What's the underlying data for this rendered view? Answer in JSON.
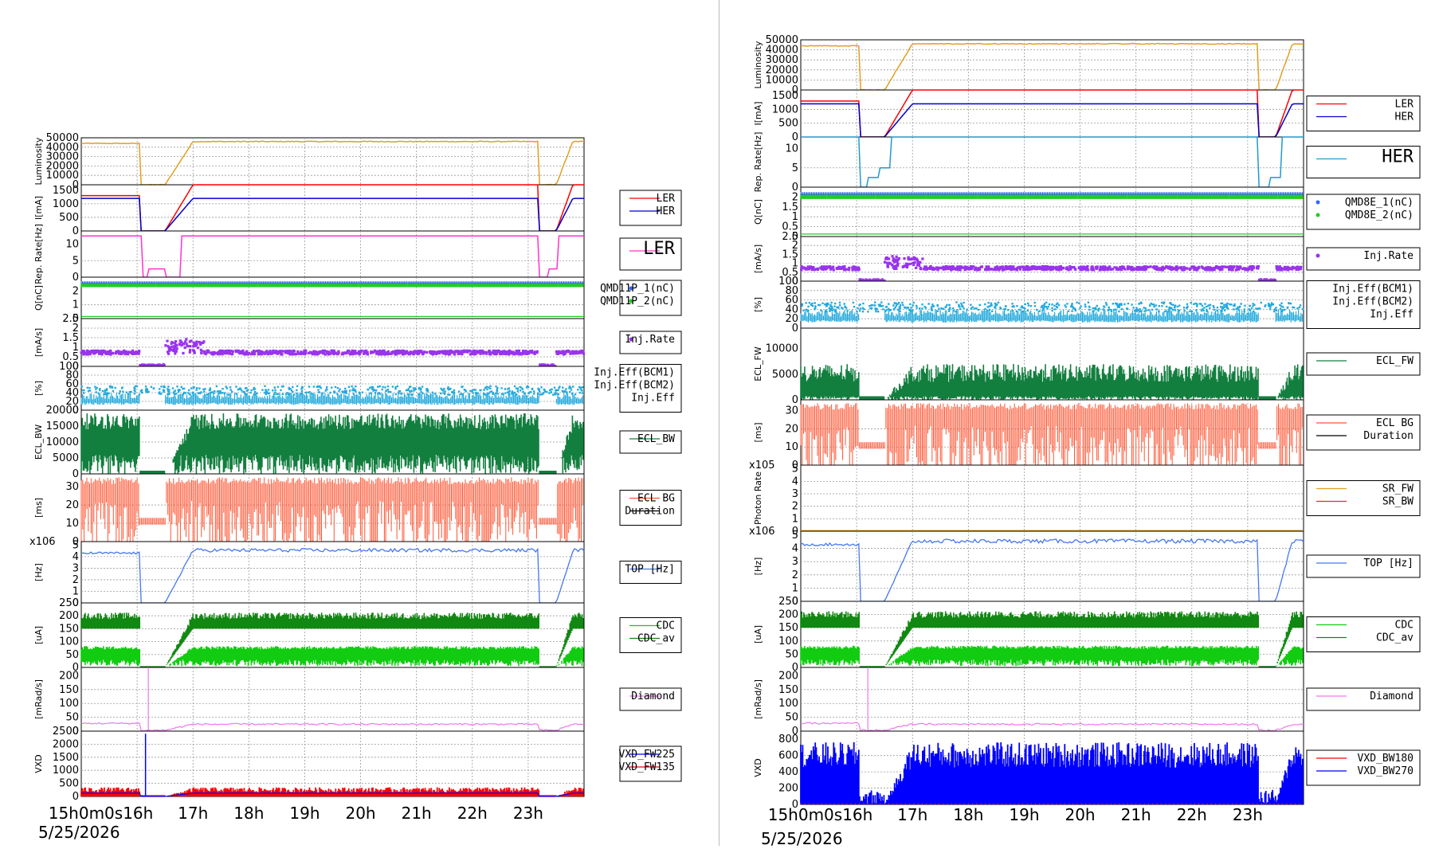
{
  "colors": {
    "luminosity": "#e0a020",
    "ler": "#ff0000",
    "her": "#0000cc",
    "rep_rate_ler": "#ff33cc",
    "rep_rate_her": "#2299cc",
    "q1": "#3366ff",
    "q2": "#22cc22",
    "inj_rate": "#9933ee",
    "inj_eff": "#22aadd",
    "ecl": "#127f3f",
    "ecl_bg": "#ff5533",
    "sr_fw": "#e6a020",
    "sr_bw": "#ff2222",
    "top": "#4477ee",
    "cdc": "#11cc11",
    "cdc_av": "#118811",
    "diamond": "#ee77ee",
    "vxd_red": "#ff0000",
    "vxd_blue": "#0000ff"
  },
  "chart_data": [
    {
      "id": "left",
      "type": "line",
      "date": "5/25/2026",
      "x_ticks": [
        "15h0m0s16h",
        "17h",
        "18h",
        "19h",
        "20h",
        "21h",
        "22h",
        "23h"
      ],
      "panels": [
        {
          "ylabel": "Luminosity",
          "ticks": [
            "50000",
            "40000",
            "30000",
            "20000",
            "10000",
            "0"
          ],
          "ymax": 50000,
          "kind": "lum",
          "legend": []
        },
        {
          "ylabel": "I[mA]",
          "ticks": [
            "1500",
            "1000",
            "500",
            "0"
          ],
          "ymax": 1700,
          "kind": "current",
          "legend": [
            "LER",
            "HER"
          ]
        },
        {
          "ylabel": "Rep. Rate[Hz]",
          "ticks": [
            "10",
            "5",
            "0"
          ],
          "ymax": 14,
          "kind": "rep_ler",
          "legend": [
            "LER"
          ]
        },
        {
          "ylabel": "Q[nC]",
          "ticks": [
            "2",
            "1",
            "0"
          ],
          "ymax": 3,
          "kind": "charge",
          "legend": [
            "QMD11P_1(nC)",
            "QMD11P_2(nC)"
          ]
        },
        {
          "ylabel": "[mA/s]",
          "ticks": [
            "2.5",
            "2",
            "1.5",
            "1",
            "0.5",
            "0"
          ],
          "ymax": 2.5,
          "kind": "injrate",
          "legend": [
            "Inj.Rate"
          ]
        },
        {
          "ylabel": "[%]",
          "ticks": [
            "100",
            "80",
            "60",
            "40",
            "20",
            "0"
          ],
          "ymax": 100,
          "kind": "injeff",
          "legend": [
            "Inj.Eff(BCM1)",
            "Inj.Eff(BCM2)",
            "Inj.Eff"
          ]
        },
        {
          "ylabel": "ECL_BW",
          "ticks": [
            "20000",
            "15000",
            "10000",
            "5000",
            "0"
          ],
          "ymax": 20000,
          "kind": "ecl",
          "legend": [
            "ECL_BW"
          ]
        },
        {
          "ylabel": "[ms]",
          "ticks": [
            "30",
            "20",
            "10",
            "0"
          ],
          "ymax": 37,
          "kind": "eclbg",
          "legend": [
            "ECL BG",
            "Duration"
          ]
        },
        {
          "ylabel": "[Hz]",
          "multiplier": "x10^6",
          "ticks": [
            "5",
            "4",
            "3",
            "2",
            "1",
            "0"
          ],
          "ymax": 5.3,
          "kind": "top",
          "legend": [
            "TOP [Hz]"
          ]
        },
        {
          "ylabel": "[uA]",
          "ticks": [
            "250",
            "200",
            "150",
            "100",
            "50",
            "0"
          ],
          "ymax": 250,
          "kind": "cdc",
          "legend": [
            "CDC",
            "CDC_av"
          ]
        },
        {
          "ylabel": "[mRad/s]",
          "ticks": [
            "200",
            "150",
            "100",
            "50",
            "0"
          ],
          "ymax": 230,
          "kind": "diamond",
          "legend": [
            "Diamond"
          ]
        },
        {
          "ylabel": "VXD",
          "ticks": [
            "2500",
            "2000",
            "1500",
            "1000",
            "500",
            "0"
          ],
          "ymax": 2500,
          "kind": "vxd_left",
          "legend": [
            "VXD_FW225",
            "VXD_FW135"
          ]
        }
      ]
    },
    {
      "id": "right",
      "type": "line",
      "date": "5/25/2026",
      "x_ticks": [
        "15h0m0s16h",
        "17h",
        "18h",
        "19h",
        "20h",
        "21h",
        "22h",
        "23h"
      ],
      "panels": [
        {
          "ylabel": "Luminosity",
          "ticks": [
            "50000",
            "40000",
            "30000",
            "20000",
            "10000",
            "0"
          ],
          "ymax": 50000,
          "kind": "lum",
          "legend": []
        },
        {
          "ylabel": "I[mA]",
          "ticks": [
            "1500",
            "1000",
            "500",
            "0"
          ],
          "ymax": 1700,
          "kind": "current",
          "legend": [
            "LER",
            "HER"
          ]
        },
        {
          "ylabel": "Rep. Rate[Hz]",
          "ticks": [
            "10",
            "5",
            "0"
          ],
          "ymax": 13,
          "kind": "rep_her",
          "legend": [
            "HER"
          ]
        },
        {
          "ylabel": "Q[nC]",
          "ticks": [
            "2",
            "1.5",
            "1",
            "0.5",
            "0"
          ],
          "ymax": 2.5,
          "kind": "charge",
          "legend": [
            "QMD8E_1(nC)",
            "QMD8E_2(nC)"
          ]
        },
        {
          "ylabel": "[mA/s]",
          "ticks": [
            "2.5",
            "2",
            "1.5",
            "1",
            "0.5",
            "0"
          ],
          "ymax": 2.5,
          "kind": "injrate",
          "legend": [
            "Inj.Rate"
          ]
        },
        {
          "ylabel": "[%]",
          "ticks": [
            "100",
            "80",
            "60",
            "40",
            "20",
            "0"
          ],
          "ymax": 100,
          "kind": "injeff",
          "legend": [
            "Inj.Eff(BCM1)",
            "Inj.Eff(BCM2)",
            "Inj.Eff"
          ]
        },
        {
          "ylabel": "ECL_FW",
          "ticks": [
            "10000",
            "5000",
            "0"
          ],
          "ymax": 14000,
          "kind": "eclfw",
          "legend": [
            "ECL_FW"
          ]
        },
        {
          "ylabel": "[ms]",
          "ticks": [
            "30",
            "20",
            "10",
            "0"
          ],
          "ymax": 36,
          "kind": "eclbg",
          "legend": [
            "ECL BG",
            "Duration"
          ]
        },
        {
          "ylabel": "Photon Rate",
          "multiplier": "x10^5",
          "ticks": [
            "5",
            "4",
            "3",
            "2",
            "1",
            "0"
          ],
          "ymax": 5.3,
          "kind": "photon",
          "legend": [
            "SR_FW",
            "SR_BW"
          ]
        },
        {
          "ylabel": "[Hz]",
          "multiplier": "x10^6",
          "ticks": [
            "5",
            "4",
            "3",
            "2",
            "1",
            "0"
          ],
          "ymax": 5.3,
          "kind": "top",
          "legend": [
            "TOP [Hz]"
          ]
        },
        {
          "ylabel": "[uA]",
          "ticks": [
            "250",
            "200",
            "150",
            "100",
            "50",
            "0"
          ],
          "ymax": 250,
          "kind": "cdc",
          "legend": [
            "CDC",
            "CDC_av"
          ]
        },
        {
          "ylabel": "[mRad/s]",
          "ticks": [
            "200",
            "150",
            "100",
            "50",
            "0"
          ],
          "ymax": 230,
          "kind": "diamond",
          "legend": [
            "Diamond"
          ]
        },
        {
          "ylabel": "VXD",
          "ticks": [
            "800",
            "600",
            "400",
            "200",
            "0"
          ],
          "ymax": 900,
          "kind": "vxd_right",
          "legend": [
            "VXD_BW180",
            "VXD_BW270"
          ]
        }
      ]
    }
  ]
}
